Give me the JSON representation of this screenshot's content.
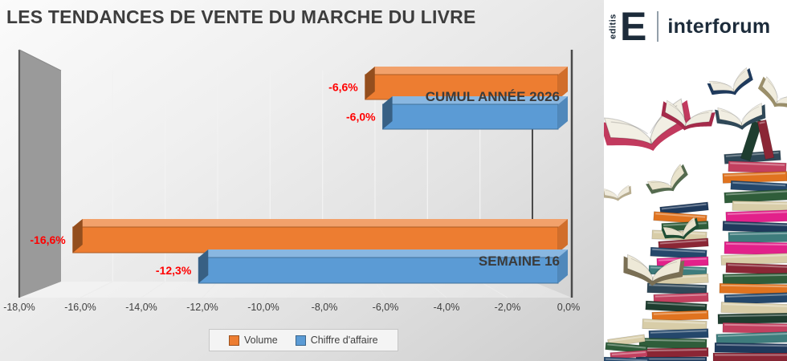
{
  "title": "LES TENDANCES DE VENTE DU MARCHE DU LIVRE",
  "brand": {
    "editis_small": "editis",
    "editis_initial": "E",
    "name": "interforum"
  },
  "legend": [
    {
      "label": "Volume",
      "color": "#ED7D31"
    },
    {
      "label": "Chiffre d'affaire",
      "color": "#5B9BD5"
    }
  ],
  "chart_data": {
    "type": "bar",
    "orientation": "horizontal-3d",
    "title": "LES TENDANCES DE VENTE DU MARCHE DU LIVRE",
    "categories": [
      "CUMUL ANNÉE 2026",
      "SEMAINE 16"
    ],
    "series": [
      {
        "name": "Volume",
        "color": "#ED7D31",
        "values": [
          -6.6,
          -16.6
        ],
        "labels": [
          "-6,6%",
          "-16,6%"
        ]
      },
      {
        "name": "Chiffre d'affaire",
        "color": "#5B9BD5",
        "values": [
          -6.0,
          -12.3
        ],
        "labels": [
          "-6,0%",
          "-12,3%"
        ]
      }
    ],
    "xlim": [
      -18,
      0
    ],
    "tick_step": 2,
    "ticks": [
      -18,
      -16,
      -14,
      -12,
      -10,
      -8,
      -6,
      -4,
      -2,
      0
    ],
    "tick_labels": [
      "-18,0%",
      "-16,0%",
      "-14,0%",
      "-12,0%",
      "-10,0%",
      "-8,0%",
      "-6,0%",
      "-4,0%",
      "-2,0%",
      "0,0%"
    ],
    "value_label_color": "#FF0000",
    "category_label_color": "#3b3b3b",
    "tick_label_color": "#404040",
    "grid": true,
    "legend_position": "bottom"
  },
  "illustration": {
    "description": "pile of colorful books with flying open books",
    "stack": [
      [
        150,
        190,
        70,
        12,
        "#2f4858",
        -4
      ],
      [
        155,
        202,
        72,
        13,
        "#c2405f",
        2
      ],
      [
        148,
        215,
        80,
        12,
        "#e0731f",
        -2
      ],
      [
        158,
        227,
        70,
        11,
        "#24476b",
        3
      ],
      [
        150,
        238,
        82,
        13,
        "#2f5d3a",
        -3
      ],
      [
        160,
        251,
        70,
        12,
        "#d8cda8",
        1
      ],
      [
        152,
        263,
        80,
        14,
        "#e2218a",
        -2
      ],
      [
        148,
        277,
        84,
        12,
        "#1f3a5c",
        2
      ],
      [
        155,
        289,
        76,
        13,
        "#3e7c7c",
        -1
      ],
      [
        150,
        302,
        82,
        15,
        "#e2218a",
        1
      ],
      [
        146,
        317,
        86,
        12,
        "#d8cda8",
        -2
      ],
      [
        152,
        329,
        80,
        12,
        "#8b2635",
        2
      ],
      [
        148,
        341,
        84,
        13,
        "#2f5d3a",
        -1
      ],
      [
        144,
        354,
        88,
        12,
        "#e0731f",
        1
      ],
      [
        150,
        366,
        82,
        12,
        "#24476b",
        -2
      ],
      [
        146,
        378,
        86,
        13,
        "#d8cda8",
        2
      ],
      [
        142,
        391,
        90,
        12,
        "#1e3d2f",
        -1
      ],
      [
        148,
        403,
        84,
        12,
        "#c2405f",
        1
      ],
      [
        140,
        415,
        92,
        13,
        "#3e7c7c",
        -2
      ],
      [
        138,
        428,
        94,
        12,
        "#1f3a5c",
        1
      ],
      [
        136,
        440,
        96,
        10,
        "#8b2635",
        0
      ],
      [
        70,
        255,
        60,
        10,
        "#1f3a5c",
        -6
      ],
      [
        62,
        266,
        66,
        11,
        "#e0731f",
        4
      ],
      [
        72,
        277,
        58,
        10,
        "#2f5d3a",
        -3
      ],
      [
        60,
        288,
        68,
        11,
        "#d8cda8",
        2
      ],
      [
        68,
        299,
        62,
        10,
        "#8b2635",
        -4
      ],
      [
        58,
        310,
        70,
        11,
        "#24476b",
        3
      ],
      [
        66,
        321,
        64,
        11,
        "#e2218a",
        -2
      ],
      [
        56,
        332,
        72,
        11,
        "#3e7c7c",
        2
      ],
      [
        64,
        343,
        66,
        11,
        "#d8cda8",
        -3
      ],
      [
        54,
        354,
        74,
        12,
        "#2f4858",
        2
      ],
      [
        62,
        366,
        68,
        11,
        "#c2405f",
        -2
      ],
      [
        52,
        377,
        76,
        11,
        "#1e3d2f",
        3
      ],
      [
        60,
        388,
        70,
        11,
        "#e0731f",
        -2
      ],
      [
        48,
        399,
        80,
        12,
        "#d8cda8",
        2
      ],
      [
        56,
        411,
        74,
        11,
        "#24476b",
        -2
      ],
      [
        44,
        422,
        84,
        12,
        "#2f5d3a",
        1
      ],
      [
        52,
        434,
        78,
        11,
        "#8b2635",
        -1
      ],
      [
        40,
        445,
        88,
        10,
        "#1f3a5c",
        0
      ],
      [
        5,
        420,
        46,
        9,
        "#d8cda8",
        -8
      ],
      [
        2,
        429,
        52,
        9,
        "#2f5d3a",
        5
      ],
      [
        8,
        438,
        46,
        8,
        "#c2405f",
        -4
      ],
      [
        0,
        446,
        56,
        8,
        "#24476b",
        2
      ],
      [
        178,
        148,
        12,
        52,
        "#1e3d2f",
        18
      ],
      [
        196,
        150,
        11,
        48,
        "#8b2635",
        -12
      ]
    ],
    "open_books": [
      [
        52,
        150,
        1.7,
        -14,
        "#c23a5e",
        "#f2efe4"
      ],
      [
        105,
        140,
        1.0,
        12,
        "#a52a4a",
        "#efece0"
      ],
      [
        222,
        115,
        0.9,
        28,
        "#9b8f6a",
        "#f0ecdd"
      ],
      [
        157,
        100,
        0.85,
        -20,
        "#1f3a5c",
        "#eeeadd"
      ],
      [
        78,
        222,
        0.8,
        -28,
        "#556b4f",
        "#e9e3cc"
      ],
      [
        16,
        238,
        0.55,
        -8,
        "#b8ad8f",
        "#efeadb"
      ],
      [
        95,
        283,
        0.7,
        -18,
        "#1e4d33",
        "#e8e2cc"
      ],
      [
        62,
        330,
        1.15,
        4,
        "#7a6f54",
        "#eee9d8"
      ],
      [
        170,
        140,
        0.95,
        -6,
        "#2f4858",
        "#f1eee2"
      ]
    ]
  }
}
